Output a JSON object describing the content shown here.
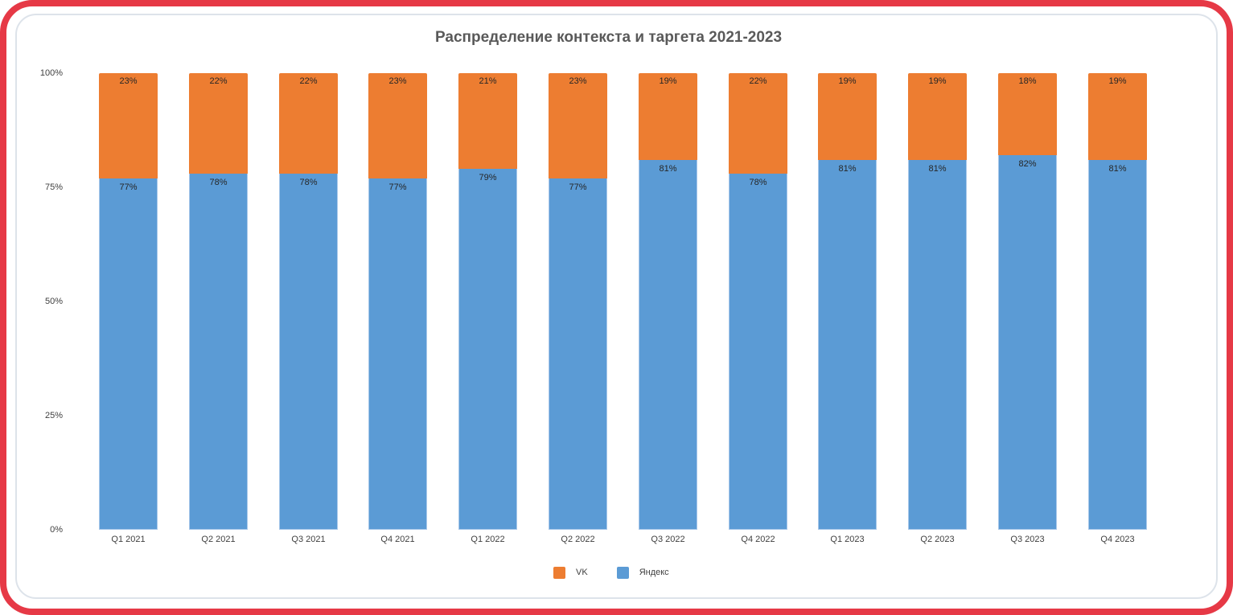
{
  "chart_data": {
    "type": "bar",
    "stacked": true,
    "percent_stacked": true,
    "title": "Распределение контекста и таргета 2021-2023",
    "xlabel": "",
    "ylabel": "",
    "ylim": [
      0,
      100
    ],
    "y_ticks": [
      "0%",
      "25%",
      "50%",
      "75%",
      "100%"
    ],
    "grid": false,
    "legend_position": "bottom",
    "categories": [
      "Q1 2021",
      "Q2 2021",
      "Q3 2021",
      "Q4 2021",
      "Q1 2022",
      "Q2 2022",
      "Q3 2022",
      "Q4 2022",
      "Q1 2023",
      "Q2 2023",
      "Q3 2023",
      "Q4 2023"
    ],
    "series": [
      {
        "name": "Яндекс",
        "color": "#5b9bd5",
        "values": [
          77,
          78,
          78,
          77,
          79,
          77,
          81,
          78,
          81,
          81,
          82,
          81
        ]
      },
      {
        "name": "VK",
        "color": "#ed7d31",
        "values": [
          23,
          22,
          22,
          23,
          21,
          23,
          19,
          22,
          19,
          19,
          18,
          19
        ]
      }
    ]
  },
  "labels": {
    "title": "Распределение контекста и таргета 2021-2023",
    "y_ticks": [
      "100%",
      "75%",
      "50%",
      "25%",
      "0%"
    ],
    "categories": [
      "Q1 2021",
      "Q2 2021",
      "Q3 2021",
      "Q4 2021",
      "Q1 2022",
      "Q2 2022",
      "Q3 2022",
      "Q4 2022",
      "Q1 2023",
      "Q2 2023",
      "Q3 2023",
      "Q4 2023"
    ],
    "vk_labels": [
      "23%",
      "22%",
      "22%",
      "23%",
      "21%",
      "23%",
      "19%",
      "22%",
      "19%",
      "19%",
      "18%",
      "19%"
    ],
    "yandex_labels": [
      "77%",
      "78%",
      "78%",
      "77%",
      "79%",
      "77%",
      "81%",
      "78%",
      "81%",
      "81%",
      "82%",
      "81%"
    ],
    "legend": [
      {
        "name": "VK",
        "color": "#ed7d31"
      },
      {
        "name": "Яндекс",
        "color": "#5b9bd5"
      }
    ]
  },
  "theme": {
    "frame_color": "#e63946",
    "vk_color": "#ed7d31",
    "yandex_color": "#5b9bd5"
  }
}
